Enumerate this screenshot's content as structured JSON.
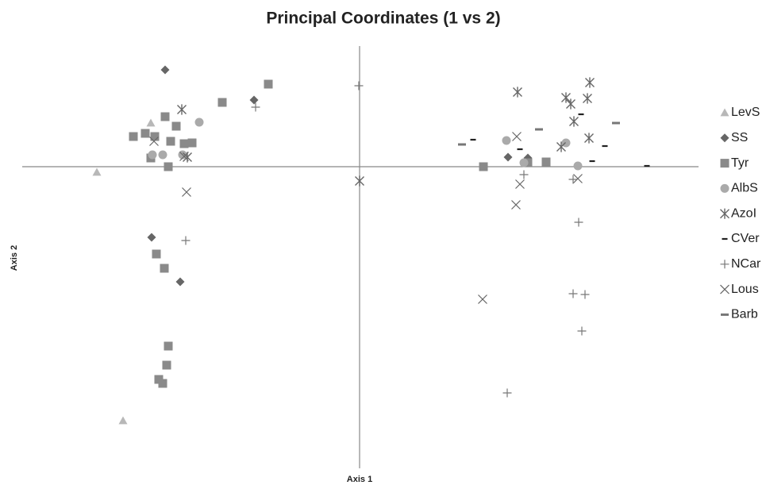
{
  "chart_data": {
    "type": "scatter",
    "title": "Principal Coordinates (1 vs 2)",
    "x_label": "Axis 1",
    "y_label": "Axis 2",
    "xlim": [
      -4.25,
      4.27
    ],
    "ylim": [
      -3.8,
      1.52
    ],
    "series": [
      {
        "name": "LevS",
        "marker": "triangle",
        "color": "#b8b8b8",
        "x": [
          -3.31,
          -2.63,
          -2.98
        ],
        "values": [
          -0.07,
          0.55,
          -3.2
        ]
      },
      {
        "name": "SS",
        "marker": "diamond",
        "color": "#666666",
        "x": [
          -2.45,
          -1.33,
          -2.62,
          -2.26,
          1.87,
          2.12
        ],
        "values": [
          1.22,
          0.84,
          -0.89,
          -1.45,
          0.12,
          0.11
        ]
      },
      {
        "name": "Tyr",
        "marker": "square",
        "color": "#8a8a8a",
        "x": [
          -1.15,
          -1.73,
          -2.45,
          -2.31,
          -2.85,
          -2.7,
          -2.58,
          -2.38,
          -2.21,
          -2.11,
          -2.63,
          -2.41,
          -2.56,
          -2.46,
          -2.41,
          -2.43,
          -2.53,
          -2.48,
          1.56,
          2.12,
          2.35
        ],
        "values": [
          1.04,
          0.81,
          0.63,
          0.51,
          0.38,
          0.42,
          0.38,
          0.32,
          0.29,
          0.3,
          0.11,
          0.0,
          -1.1,
          -1.28,
          -2.26,
          -2.5,
          -2.68,
          -2.73,
          0.0,
          0.05,
          0.06
        ]
      },
      {
        "name": "AlbS",
        "marker": "circle",
        "color": "#aaaaaa",
        "x": [
          -2.02,
          1.85,
          2.6,
          2.75,
          -2.48,
          -2.23,
          2.07,
          -2.61
        ],
        "values": [
          0.56,
          0.33,
          0.3,
          0.01,
          0.15,
          0.15,
          0.05,
          0.15
        ]
      },
      {
        "name": "AzoI",
        "marker": "asterisk",
        "color": "#666666",
        "x": [
          -2.24,
          1.99,
          2.6,
          2.9,
          2.87,
          2.66,
          2.7,
          2.89,
          2.54,
          -2.17,
          0.0
        ],
        "values": [
          0.72,
          0.94,
          0.87,
          1.06,
          0.86,
          0.79,
          0.57,
          0.36,
          0.25,
          0.12,
          -0.18
        ]
      },
      {
        "name": "CVer",
        "marker": "dash",
        "color": "#222222",
        "x": [
          1.43,
          2.02,
          2.79,
          3.09,
          2.93,
          3.62
        ],
        "values": [
          0.34,
          0.22,
          0.66,
          0.26,
          0.07,
          0.01
        ]
      },
      {
        "name": "NCar",
        "marker": "plus",
        "color": "#777777",
        "x": [
          -0.01,
          -1.31,
          -2.19,
          2.76,
          2.69,
          2.84,
          2.8,
          1.86,
          2.69,
          2.07
        ],
        "values": [
          1.02,
          0.75,
          -0.93,
          -0.7,
          -1.6,
          -1.61,
          -2.07,
          -2.85,
          -0.16,
          -0.1
        ]
      },
      {
        "name": "Lous",
        "marker": "cross",
        "color": "#666666",
        "x": [
          -2.59,
          -2.18,
          1.98,
          2.02,
          1.97,
          1.55,
          2.75,
          -2.21
        ],
        "values": [
          0.32,
          -0.32,
          0.38,
          -0.22,
          -0.48,
          -1.67,
          -0.15,
          0.13
        ]
      },
      {
        "name": "Barb",
        "marker": "bar",
        "color": "#777777",
        "x": [
          1.29,
          2.26,
          3.23
        ],
        "values": [
          0.28,
          0.47,
          0.55
        ]
      }
    ]
  }
}
